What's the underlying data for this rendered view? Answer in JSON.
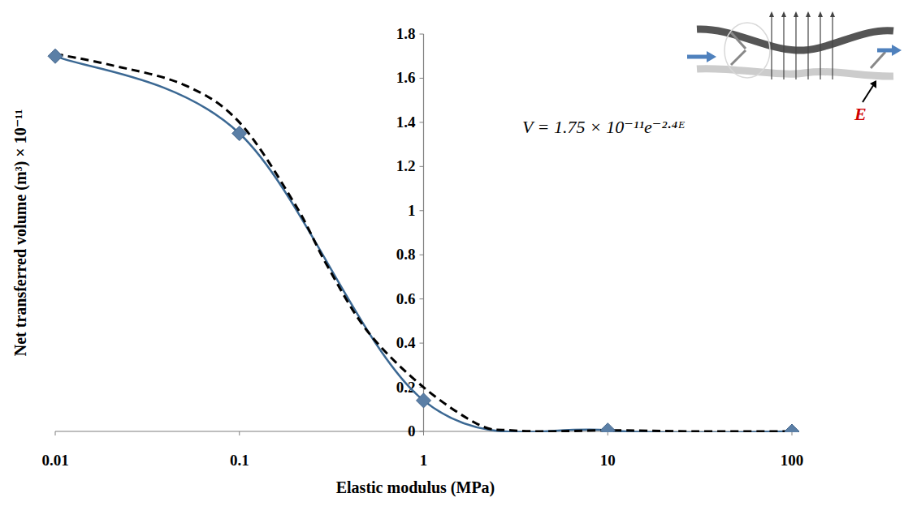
{
  "chart_data": {
    "type": "line",
    "x_label": "Elastic modulus (MPa)",
    "y_label": "Net transferred volume (m³) × 10⁻¹¹",
    "annotations": [
      "V = 1.75 × 10⁻¹¹e⁻²·⁴ᴱ",
      "E"
    ],
    "log": "x",
    "grid": false,
    "xlim": [
      0.01,
      100
    ],
    "xticks": [
      0.01,
      0.1,
      1,
      10,
      100
    ],
    "ylim": [
      0,
      1.8
    ],
    "yticks": [
      0,
      0.2,
      0.4,
      0.6,
      0.8,
      1,
      1.2,
      1.4,
      1.6,
      1.8
    ],
    "series": [
      {
        "color": "#3b6893",
        "marker": "diamond",
        "line_style": "solid",
        "x": [
          0.01,
          0.1,
          1,
          10,
          100
        ],
        "values": [
          1.7,
          1.35,
          0.14,
          0.005,
          0
        ]
      },
      {
        "color": "#000000",
        "marker": "none",
        "line_style": "dashed",
        "x": [
          0.01,
          0.02,
          0.05,
          0.1,
          0.2,
          0.3,
          0.5,
          1,
          2,
          3,
          5,
          10,
          30,
          100
        ],
        "values": [
          1.71,
          1.66,
          1.57,
          1.4,
          1.03,
          0.75,
          0.45,
          0.2,
          0.03,
          0.005,
          0,
          0.005,
          0,
          0
        ]
      }
    ]
  }
}
